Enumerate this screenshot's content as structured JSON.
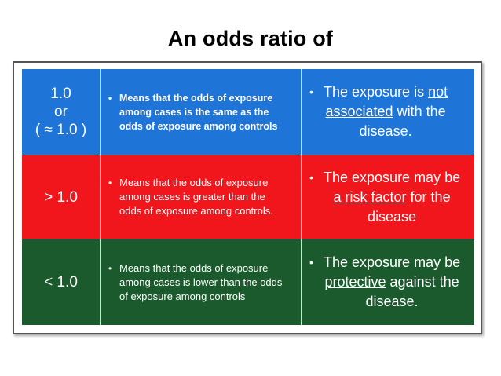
{
  "title": "An odds ratio of",
  "colors": {
    "blue": "#1f74d8",
    "red": "#f0161b",
    "green": "#1b5a2c"
  },
  "rows": [
    {
      "value": "1.0\nor\n( ≈  1.0  )",
      "bullet": "•",
      "meaning": "Means that the odds of exposure\namong cases is the same as the\nodds of exposure among controls",
      "implication": {
        "l1": "The exposure is ",
        "l1_u": "not",
        "l2_u": "associated",
        "l2": " with the",
        "l3": "disease."
      }
    },
    {
      "value": "> 1.0",
      "bullet": "•",
      "meaning": "Means that the odds of exposure\namong cases is greater than the\nodds of  exposure among controls.",
      "implication": {
        "l1": "The exposure may be",
        "l2_u": "a risk factor",
        "l2": " for the",
        "l3": "disease"
      }
    },
    {
      "value": "< 1.0",
      "bullet": "•",
      "meaning": "Means that the odds of exposure\namong cases is lower than the odds\nof exposure among controls",
      "implication": {
        "l1": "The exposure may be",
        "l2_u": "protective",
        "l2": " against the",
        "l3": "disease."
      }
    }
  ]
}
